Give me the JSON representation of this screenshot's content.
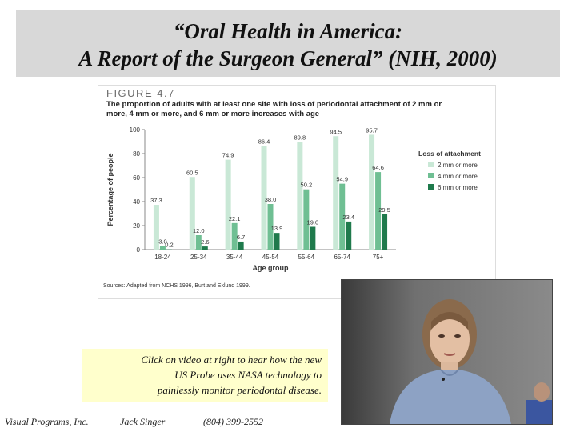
{
  "slide": {
    "title_line1": "“Oral Health in America:",
    "title_line2": "A Report of the Surgeon General” (NIH, 2000)"
  },
  "figure": {
    "label": "FIGURE 4.7",
    "caption": "The proportion of adults with at least one site with loss of periodontal attachment of 2 mm or more, 4 mm or more, and 6 mm or more increases with age",
    "source": "Sources: Adapted from NCHS 1996, Burt and Eklund 1999."
  },
  "chart_data": {
    "type": "bar",
    "title": "",
    "xlabel": "Age group",
    "ylabel": "Percentage of people",
    "ylim": [
      0,
      100
    ],
    "yticks": [
      0,
      20,
      40,
      60,
      80,
      100
    ],
    "categories": [
      "18-24",
      "25-34",
      "35-44",
      "45-54",
      "55-64",
      "65-74",
      "75+"
    ],
    "legend_title": "Loss of attachment",
    "legend_position": "right",
    "grid": false,
    "series": [
      {
        "name": "2 mm or more",
        "color": "#c9e8d6",
        "values": [
          37.3,
          60.5,
          74.9,
          86.4,
          89.8,
          94.5,
          95.7
        ],
        "labels": [
          "37.3",
          "60.5",
          "74.9",
          "86.4",
          "89.8",
          "94.5",
          "95.7"
        ]
      },
      {
        "name": "4 mm or more",
        "color": "#6fbf93",
        "values": [
          3.0,
          12.0,
          22.1,
          38.0,
          50.2,
          54.9,
          64.6
        ],
        "labels": [
          "3.0",
          "12.0",
          "22.1",
          "38.0",
          "50.2",
          "54.9",
          "64.6"
        ]
      },
      {
        "name": "6 mm or more",
        "color": "#1f7a4c",
        "values": [
          0.2,
          2.6,
          6.7,
          13.9,
          19.0,
          23.4,
          29.5
        ],
        "labels": [
          "0.2",
          "2.6",
          "6.7",
          "13.9",
          "19.0",
          "23.4",
          "29.5"
        ]
      }
    ]
  },
  "callout": {
    "line1": "Click on video at right to hear how the new",
    "line2": "US Probe uses NASA technology to",
    "line3": "painlessly  monitor periodontal disease."
  },
  "footer": {
    "company": "Visual Programs, Inc.",
    "person": "Jack Singer",
    "phone": "(804) 399-2552"
  }
}
